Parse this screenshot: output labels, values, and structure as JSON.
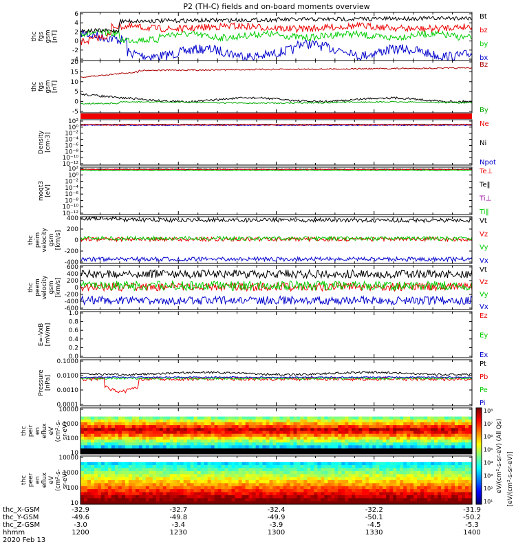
{
  "title": "P2 (TH-C) fields and on-board moments overview",
  "colors": {
    "black": "#000000",
    "red": "#ee0000",
    "green": "#00cc00",
    "blue": "#0000cc",
    "darkred": "#aa0000",
    "purple": "#990099"
  },
  "chart_data": [
    {
      "id": "fgs",
      "type": "line",
      "ylabel": [
        "thc",
        "fgs",
        "gsm",
        "[nT]"
      ],
      "yticks": [
        "6",
        "4",
        "2",
        "0",
        "-2",
        "-4"
      ],
      "ylim": [
        -4,
        6.5
      ],
      "legend": [
        {
          "name": "Bt",
          "color": "#000000"
        },
        {
          "name": "bz",
          "color": "#ee0000"
        },
        {
          "name": "by",
          "color": "#00cc00"
        },
        {
          "name": "bx",
          "color": "#0000cc"
        }
      ]
    },
    {
      "id": "fgs_gse",
      "type": "line",
      "ylabel": [
        "thc",
        "fgs",
        "gsm",
        "[nT]"
      ],
      "yticks": [
        "20",
        "15",
        "10",
        "5",
        "0",
        "-5"
      ],
      "ylim": [
        -7,
        21
      ],
      "legend": [
        {
          "name": "Bz",
          "color": "#aa0000"
        },
        {
          "name": "By",
          "color": "#00aa00"
        }
      ]
    },
    {
      "id": "density",
      "type": "line",
      "ylabel": [
        "Density",
        "[cm-3]"
      ],
      "yticks": [
        "10²",
        "10⁰",
        "10⁻²",
        "10⁻⁴",
        "10⁻⁶",
        "10⁻⁸",
        "10⁻¹⁰",
        "10⁻¹²"
      ],
      "legend": [
        {
          "name": "Ne",
          "color": "#ee0000"
        },
        {
          "name": "Ni",
          "color": "#000000"
        },
        {
          "name": "Npot",
          "color": "#0000cc"
        }
      ]
    },
    {
      "id": "temp",
      "type": "line",
      "ylabel": [
        "moqt3",
        "[eV]"
      ],
      "yticks": [
        "10²",
        "10⁰",
        "10⁻²",
        "10⁻⁴",
        "10⁻⁶",
        "10⁻⁸",
        "10⁻¹⁰",
        "10⁻¹²"
      ],
      "legend": [
        {
          "name": "Te⊥",
          "color": "#ee0000"
        },
        {
          "name": "Te‖",
          "color": "#000000"
        },
        {
          "name": "Ti⊥",
          "color": "#990099"
        },
        {
          "name": "Ti‖",
          "color": "#00cc00"
        }
      ]
    },
    {
      "id": "peim",
      "type": "line",
      "ylabel": [
        "thc",
        "peim",
        "velocity",
        "gsm",
        "[km/s]"
      ],
      "yticks": [
        "400",
        "200",
        "0",
        "-200",
        "-400"
      ],
      "ylim": [
        -450,
        430
      ],
      "legend": [
        {
          "name": "Vt",
          "color": "#000000"
        },
        {
          "name": "Vz",
          "color": "#ee0000"
        },
        {
          "name": "Vy",
          "color": "#00cc00"
        },
        {
          "name": "Vx",
          "color": "#0000cc"
        }
      ]
    },
    {
      "id": "peem",
      "type": "line",
      "ylabel": [
        "thc",
        "peem",
        "velocity",
        "gsm",
        "[km/s]"
      ],
      "yticks": [
        "600",
        "400",
        "200",
        "0",
        "-200",
        "-400",
        "-600"
      ],
      "ylim": [
        -650,
        650
      ],
      "legend": [
        {
          "name": "Vt",
          "color": "#000000"
        },
        {
          "name": "Vz",
          "color": "#ee0000"
        },
        {
          "name": "Vy",
          "color": "#00cc00"
        },
        {
          "name": "Vx",
          "color": "#0000cc"
        }
      ]
    },
    {
      "id": "efield",
      "type": "line",
      "ylabel": [
        "E=-VxB",
        "[mV/m]"
      ],
      "yticks": [
        "1.0",
        "0.8",
        "0.6",
        "0.4",
        "0.2",
        "0.0"
      ],
      "ylim": [
        0,
        1
      ],
      "legend": [
        {
          "name": "Ez",
          "color": "#ee0000"
        },
        {
          "name": "Ey",
          "color": "#00cc00"
        },
        {
          "name": "Ex",
          "color": "#0000cc"
        }
      ]
    },
    {
      "id": "pressure",
      "type": "line",
      "ylabel": [
        "Pressure",
        "[nPa]"
      ],
      "yticks": [
        "0.1000",
        "0.0100",
        "0.0010",
        "0.0001"
      ],
      "legend": [
        {
          "name": "Pt",
          "color": "#000000"
        },
        {
          "name": "Pb",
          "color": "#ee0000"
        },
        {
          "name": "Pe",
          "color": "#00cc00"
        },
        {
          "name": "Pi",
          "color": "#0000cc"
        }
      ]
    },
    {
      "id": "peir",
      "type": "heatmap",
      "ylabel": [
        "thc",
        "peir",
        "en",
        "eflux",
        "eV",
        "(cm²-s-",
        "sr-eV)"
      ],
      "yticks": [
        "10000",
        "1000",
        "100",
        "10"
      ]
    },
    {
      "id": "peer",
      "type": "heatmap",
      "ylabel": [
        "thc",
        "peer",
        "en",
        "eflux",
        "eV",
        "(cm²-s-",
        "sr-eV)"
      ],
      "yticks": [
        "10000",
        "1000",
        "100",
        "10"
      ]
    }
  ],
  "colorbar": {
    "label": "[eV/(cm²-s-sr-eV)]",
    "label2": "eV/(cm²-s-sr-eV) (All Qs)",
    "ticks": [
      "10⁸",
      "10⁷",
      "10⁶",
      "10⁵",
      "10⁴",
      "10³",
      "10²",
      "10¹"
    ]
  },
  "xaxis": {
    "rows": [
      {
        "label": "thc_X-GSM",
        "values": [
          "-32.9",
          "-32.7",
          "-32.4",
          "-32.2",
          "-31.9"
        ]
      },
      {
        "label": "thc_Y-GSM",
        "values": [
          "-49.6",
          "-49.8",
          "-49.9",
          "-50.1",
          "-50.2"
        ]
      },
      {
        "label": "thc_Z-GSM",
        "values": [
          "-3.0",
          "-3.4",
          "-3.9",
          "-4.5",
          "-5.3"
        ]
      },
      {
        "label": "hhmm",
        "values": [
          "1200",
          "1230",
          "1300",
          "1330",
          "1400"
        ]
      }
    ],
    "date": "2020 Feb 13"
  }
}
